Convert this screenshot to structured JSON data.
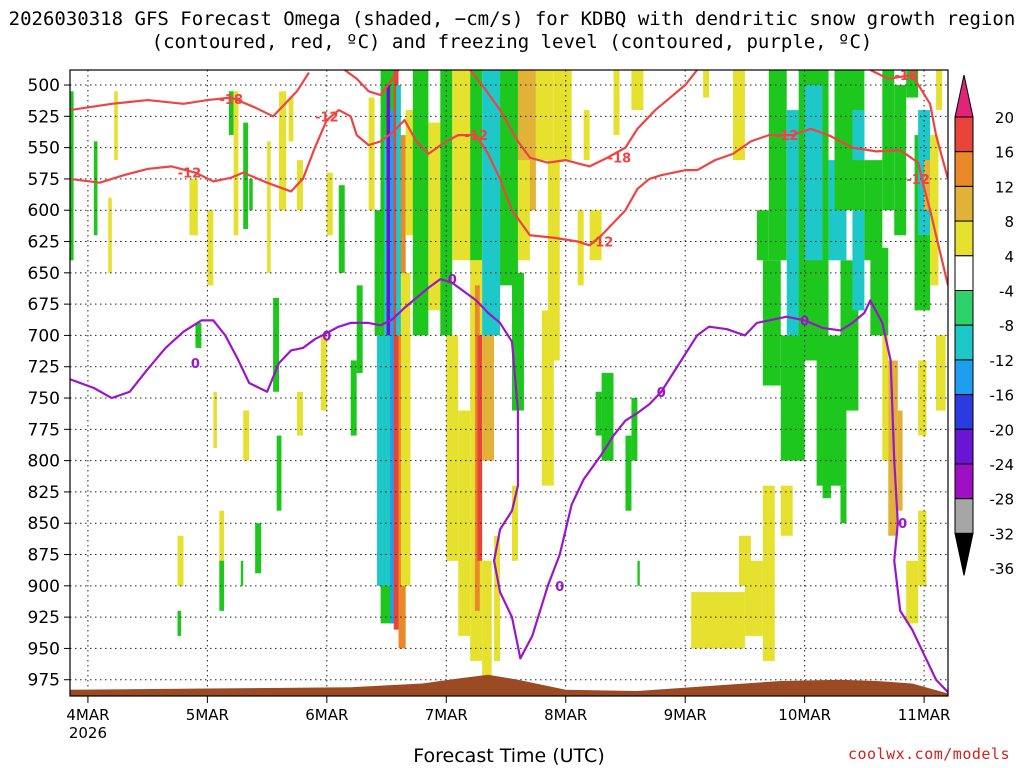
{
  "chart_data": {
    "type": "heatmap",
    "title": "2026030318 GFS Forecast Omega (shaded, −cm/s) for KDBQ with dendritic snow growth region (contoured, red, ºC) and freezing level (contoured, purple, ºC)",
    "xlabel": "Forecast Time (UTC)",
    "ylabel": "",
    "credit": "coolwx.com/models",
    "xlim": [
      -0.15,
      7.2
    ],
    "ylim": [
      988,
      488
    ],
    "y_log": false,
    "grid": true,
    "x_ticks": [
      {
        "x": 0,
        "label": "4MAR",
        "sublabel": "2026"
      },
      {
        "x": 1,
        "label": "5MAR",
        "sublabel": ""
      },
      {
        "x": 2,
        "label": "6MAR",
        "sublabel": ""
      },
      {
        "x": 3,
        "label": "7MAR",
        "sublabel": ""
      },
      {
        "x": 4,
        "label": "8MAR",
        "sublabel": ""
      },
      {
        "x": 5,
        "label": "9MAR",
        "sublabel": ""
      },
      {
        "x": 6,
        "label": "10MAR",
        "sublabel": ""
      },
      {
        "x": 7,
        "label": "11MAR",
        "sublabel": ""
      }
    ],
    "y_ticks": [
      500,
      525,
      550,
      575,
      600,
      625,
      650,
      675,
      700,
      725,
      750,
      775,
      800,
      825,
      850,
      875,
      900,
      925,
      950,
      975
    ],
    "colorbar": {
      "levels": [
        -36,
        -32,
        -28,
        -24,
        -20,
        -16,
        -12,
        -8,
        -4,
        4,
        8,
        12,
        16,
        20
      ],
      "labels": [
        "20",
        "16",
        "12",
        "8",
        "4",
        "-4",
        "-8",
        "-12",
        "-16",
        "-20",
        "-24",
        "-28",
        "-32",
        "-36"
      ],
      "colors": {
        "lt_m32": "#000000",
        "m32_m28": "#a6a6a6",
        "m28_m24": "#9e0fc2",
        "m24_m20": "#6a14d4",
        "m20_m16": "#2b3be0",
        "m16_m12": "#1f9ef0",
        "m12_m8": "#1fc8c8",
        "m8_m4": "#2fd26a",
        "m4_4": "#ffffff",
        "p4_p8": "#e6e02e",
        "p8_p12": "#e2b238",
        "p12_p16": "#e9892a",
        "p16_p20": "#e8443a",
        "gt_p20": "#e0247a",
        "strong_green": "#1ec71e"
      }
    },
    "terrain": {
      "color": "#9c4a24"
    },
    "series": [
      {
        "color": "#ee4444",
        "labels": [
          "-18",
          "-12",
          "-12",
          "-12",
          "-18",
          "-12",
          "-12",
          "-18",
          "-12"
        ],
        "contours": [
          [
            [
              -0.15,
              575
            ],
            [
              0.1,
              578
            ],
            [
              0.3,
              572
            ],
            [
              0.5,
              567
            ],
            [
              0.7,
              565
            ],
            [
              0.9,
              570
            ],
            [
              1.05,
              577
            ],
            [
              1.2,
              574
            ],
            [
              1.3,
              570
            ],
            [
              1.5,
              578
            ],
            [
              1.7,
              585
            ],
            [
              1.8,
              575
            ],
            [
              1.9,
              550
            ],
            [
              2.0,
              528
            ],
            [
              2.1,
              520
            ],
            [
              2.2,
              525
            ],
            [
              2.25,
              540
            ],
            [
              2.35,
              548
            ],
            [
              2.45,
              545
            ],
            [
              2.55,
              538
            ],
            [
              2.65,
              528
            ],
            [
              2.75,
              545
            ],
            [
              2.85,
              555
            ],
            [
              3.0,
              545
            ],
            [
              3.1,
              540
            ],
            [
              3.25,
              540
            ],
            [
              3.35,
              555
            ],
            [
              3.45,
              575
            ],
            [
              3.55,
              600
            ],
            [
              3.7,
              620
            ],
            [
              3.9,
              622
            ],
            [
              4.1,
              625
            ],
            [
              4.2,
              628
            ],
            [
              4.3,
              620
            ],
            [
              4.5,
              600
            ],
            [
              4.6,
              583
            ],
            [
              4.7,
              575
            ],
            [
              4.8,
              572
            ],
            [
              5.0,
              568
            ],
            [
              5.1,
              568
            ],
            [
              5.25,
              560
            ],
            [
              5.4,
              555
            ],
            [
              5.55,
              545
            ],
            [
              5.7,
              540
            ],
            [
              5.9,
              540
            ],
            [
              6.05,
              535
            ],
            [
              6.2,
              540
            ],
            [
              6.4,
              550
            ],
            [
              6.6,
              553
            ],
            [
              6.8,
              552
            ],
            [
              6.95,
              562
            ],
            [
              7.0,
              582
            ],
            [
              7.05,
              600
            ],
            [
              7.2,
              660
            ]
          ],
          [
            [
              -0.15,
              520
            ],
            [
              0.2,
              515
            ],
            [
              0.5,
              512
            ],
            [
              0.8,
              515
            ],
            [
              1.0,
              512
            ],
            [
              1.2,
              510
            ],
            [
              1.4,
              518
            ],
            [
              1.55,
              525
            ],
            [
              1.65,
              515
            ],
            [
              1.75,
              505
            ],
            [
              1.85,
              490
            ]
          ],
          [
            [
              2.15,
              488
            ],
            [
              2.25,
              495
            ],
            [
              2.35,
              505
            ],
            [
              2.45,
              508
            ],
            [
              2.55,
              495
            ],
            [
              2.6,
              488
            ]
          ],
          [
            [
              3.2,
              488
            ],
            [
              3.3,
              500
            ],
            [
              3.45,
              520
            ],
            [
              3.6,
              545
            ],
            [
              3.7,
              558
            ],
            [
              3.85,
              562
            ],
            [
              4.0,
              560
            ],
            [
              4.2,
              565
            ],
            [
              4.35,
              558
            ],
            [
              4.5,
              550
            ],
            [
              4.6,
              535
            ],
            [
              4.75,
              520
            ],
            [
              4.9,
              508
            ],
            [
              5.0,
              500
            ],
            [
              5.1,
              488
            ]
          ],
          [
            [
              6.55,
              488
            ],
            [
              6.7,
              495
            ],
            [
              6.9,
              492
            ],
            [
              7.05,
              515
            ],
            [
              7.1,
              540
            ],
            [
              7.2,
              575
            ]
          ]
        ]
      },
      {
        "color": "#9a16c8",
        "labels": [
          "0",
          "0",
          "0",
          "0",
          "0",
          "0",
          "0"
        ],
        "contours": [
          [
            [
              -0.15,
              735
            ],
            [
              0.05,
              742
            ],
            [
              0.2,
              750
            ],
            [
              0.35,
              745
            ],
            [
              0.5,
              727
            ],
            [
              0.65,
              710
            ],
            [
              0.8,
              697
            ],
            [
              0.95,
              688
            ],
            [
              1.05,
              688
            ],
            [
              1.15,
              700
            ],
            [
              1.25,
              718
            ],
            [
              1.35,
              738
            ],
            [
              1.5,
              745
            ],
            [
              1.6,
              722
            ],
            [
              1.7,
              712
            ],
            [
              1.8,
              710
            ],
            [
              1.9,
              703
            ],
            [
              2.0,
              698
            ],
            [
              2.1,
              693
            ],
            [
              2.2,
              690
            ],
            [
              2.35,
              690
            ],
            [
              2.45,
              692
            ],
            [
              2.55,
              687
            ],
            [
              2.65,
              678
            ],
            [
              2.75,
              670
            ],
            [
              2.85,
              662
            ],
            [
              2.95,
              655
            ],
            [
              3.05,
              658
            ],
            [
              3.15,
              665
            ],
            [
              3.25,
              672
            ],
            [
              3.35,
              682
            ],
            [
              3.45,
              690
            ],
            [
              3.55,
              705
            ],
            [
              3.6,
              760
            ],
            [
              3.6,
              820
            ],
            [
              3.55,
              840
            ],
            [
              3.45,
              855
            ],
            [
              3.4,
              880
            ],
            [
              3.45,
              905
            ],
            [
              3.55,
              925
            ],
            [
              3.62,
              958
            ],
            [
              3.72,
              940
            ],
            [
              3.85,
              900
            ],
            [
              3.95,
              875
            ],
            [
              4.0,
              855
            ],
            [
              4.05,
              835
            ],
            [
              4.15,
              815
            ],
            [
              4.3,
              795
            ],
            [
              4.4,
              780
            ],
            [
              4.5,
              768
            ],
            [
              4.6,
              762
            ],
            [
              4.7,
              755
            ],
            [
              4.8,
              745
            ],
            [
              4.9,
              730
            ],
            [
              5.0,
              715
            ],
            [
              5.1,
              700
            ],
            [
              5.2,
              693
            ],
            [
              5.35,
              695
            ],
            [
              5.5,
              700
            ],
            [
              5.6,
              690
            ],
            [
              5.7,
              688
            ],
            [
              5.85,
              685
            ],
            [
              6.0,
              688
            ],
            [
              6.15,
              694
            ],
            [
              6.3,
              696
            ],
            [
              6.4,
              690
            ],
            [
              6.5,
              682
            ],
            [
              6.55,
              672
            ],
            [
              6.65,
              690
            ],
            [
              6.72,
              720
            ],
            [
              6.75,
              800
            ],
            [
              6.78,
              850
            ],
            [
              6.75,
              880
            ],
            [
              6.8,
              920
            ],
            [
              6.9,
              935
            ],
            [
              7.0,
              955
            ],
            [
              7.1,
              975
            ],
            [
              7.2,
              985
            ]
          ]
        ]
      }
    ]
  }
}
